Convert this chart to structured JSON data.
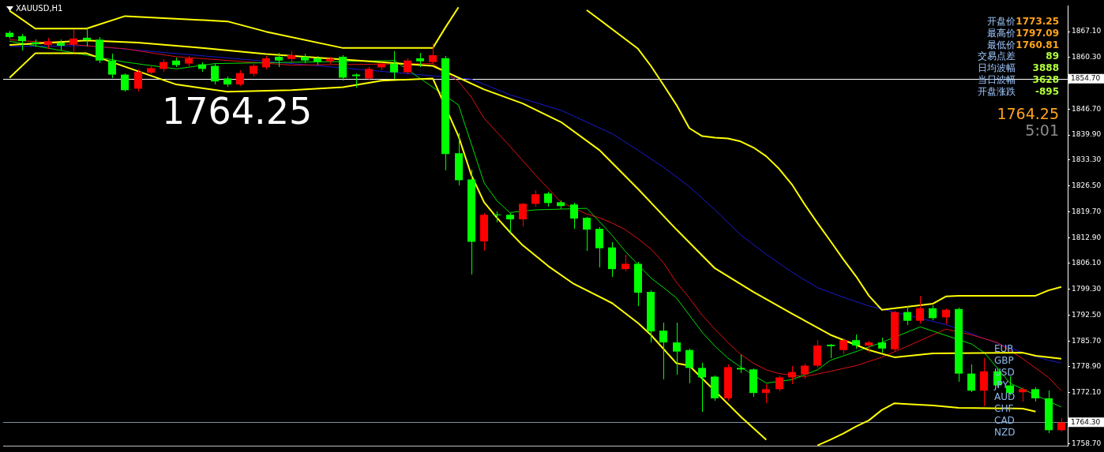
{
  "chart_data": {
    "type": "candlestick",
    "title": "XAUUSD,H1",
    "categories": [
      null,
      null,
      null,
      null,
      null,
      null,
      null,
      null,
      null,
      null,
      null,
      null,
      null,
      null,
      null,
      null,
      null,
      null,
      null,
      null,
      null,
      null,
      null,
      null,
      null,
      null,
      null,
      null,
      null,
      null,
      null,
      null,
      null,
      null,
      null,
      null,
      null,
      null,
      null,
      null,
      null,
      null,
      null,
      null,
      null,
      null,
      null,
      null,
      null,
      null,
      null,
      null,
      null,
      null,
      null,
      null,
      null,
      null,
      null,
      null,
      null,
      null,
      null,
      null,
      null,
      null,
      null,
      null,
      null,
      null,
      null,
      null,
      null,
      null,
      null,
      null,
      null,
      null,
      null,
      null,
      null,
      null,
      null
    ],
    "ohlc": [
      [
        1866.8,
        1867.2,
        1865.5,
        1865.7
      ],
      [
        1865.9,
        1866.5,
        1862.4,
        1864.6
      ],
      [
        1864.3,
        1865.0,
        1863.4,
        1863.8
      ],
      [
        1863.6,
        1865.3,
        1862.8,
        1864.6
      ],
      [
        1864.2,
        1865.0,
        1862.5,
        1863.4
      ],
      [
        1863.8,
        1867.5,
        1861.8,
        1865.3
      ],
      [
        1865.5,
        1867.9,
        1863.4,
        1864.9
      ],
      [
        1865.0,
        1865.5,
        1859.0,
        1859.5
      ],
      [
        1859.5,
        1861.3,
        1855.2,
        1855.8
      ],
      [
        1855.8,
        1856.0,
        1851.5,
        1851.7
      ],
      [
        1852.1,
        1857.0,
        1851.5,
        1856.5
      ],
      [
        1856.3,
        1858.0,
        1856.0,
        1857.5
      ],
      [
        1857.3,
        1859.8,
        1856.8,
        1859.1
      ],
      [
        1859.5,
        1860.2,
        1858.0,
        1858.3
      ],
      [
        1858.7,
        1860.5,
        1858.2,
        1860.1
      ],
      [
        1858.5,
        1859.0,
        1856.8,
        1857.3
      ],
      [
        1858.1,
        1858.5,
        1853.5,
        1854.0
      ],
      [
        1854.8,
        1855.2,
        1852.8,
        1853.2
      ],
      [
        1853.2,
        1856.8,
        1852.9,
        1856.2
      ],
      [
        1856.0,
        1858.6,
        1855.6,
        1858.1
      ],
      [
        1857.7,
        1860.6,
        1857.4,
        1860.1
      ],
      [
        1860.5,
        1861.5,
        1858.0,
        1859.5
      ],
      [
        1859.9,
        1861.9,
        1859.0,
        1860.9
      ],
      [
        1860.5,
        1861.2,
        1859.0,
        1859.5
      ],
      [
        1860.1,
        1860.6,
        1858.6,
        1859.1
      ],
      [
        1859.3,
        1860.4,
        1858.8,
        1860.0
      ],
      [
        1860.5,
        1860.9,
        1854.6,
        1855.0
      ],
      [
        1855.8,
        1856.0,
        1852.5,
        1855.4
      ],
      [
        1854.8,
        1857.6,
        1854.4,
        1857.3
      ],
      [
        1857.7,
        1859.0,
        1857.3,
        1858.7
      ],
      [
        1858.7,
        1861.8,
        1854.8,
        1856.4
      ],
      [
        1856.4,
        1859.9,
        1856.0,
        1859.5
      ],
      [
        1860.1,
        1861.5,
        1858.0,
        1859.3
      ],
      [
        1859.1,
        1864.0,
        1859.0,
        1860.9
      ],
      [
        1860.1,
        1860.5,
        1830.8,
        1834.9
      ],
      [
        1835.1,
        1840.3,
        1826.9,
        1828.0
      ],
      [
        1828.2,
        1830.6,
        1803.4,
        1811.8
      ],
      [
        1811.9,
        1819.2,
        1809.5,
        1818.9
      ],
      [
        1819.0,
        1819.7,
        1817.1,
        1818.8
      ],
      [
        1818.9,
        1819.2,
        1814.4,
        1817.7
      ],
      [
        1817.7,
        1822.0,
        1816.1,
        1821.8
      ],
      [
        1821.8,
        1825.3,
        1821.2,
        1824.3
      ],
      [
        1824.5,
        1824.8,
        1821.2,
        1822.0
      ],
      [
        1822.2,
        1822.6,
        1820.6,
        1821.2
      ],
      [
        1821.6,
        1822.0,
        1815.5,
        1817.9
      ],
      [
        1818.1,
        1818.3,
        1809.7,
        1815.0
      ],
      [
        1815.2,
        1815.5,
        1805.2,
        1810.1
      ],
      [
        1810.3,
        1811.5,
        1802.7,
        1804.6
      ],
      [
        1804.6,
        1808.3,
        1804.2,
        1806.0
      ],
      [
        1806.0,
        1806.5,
        1795.1,
        1798.4
      ],
      [
        1798.6,
        1799.0,
        1785.7,
        1788.2
      ],
      [
        1788.4,
        1790.5,
        1775.9,
        1785.3
      ],
      [
        1785.3,
        1790.5,
        1777.1,
        1782.9
      ],
      [
        1783.3,
        1783.5,
        1774.7,
        1778.6
      ],
      [
        1778.6,
        1779.8,
        1767.3,
        1776.1
      ],
      [
        1776.3,
        1776.5,
        1770.2,
        1770.6
      ],
      [
        1770.6,
        1779.4,
        1770.2,
        1778.8
      ],
      [
        1778.6,
        1782.0,
        1777.5,
        1778.2
      ],
      [
        1778.2,
        1778.4,
        1771.2,
        1772.0
      ],
      [
        1772.0,
        1774.2,
        1769.5,
        1773.0
      ],
      [
        1773.0,
        1776.5,
        1772.6,
        1776.1
      ],
      [
        1776.1,
        1779.0,
        1774.5,
        1777.5
      ],
      [
        1776.9,
        1779.6,
        1776.0,
        1779.2
      ],
      [
        1779.2,
        1785.9,
        1779.0,
        1784.5
      ],
      [
        1784.7,
        1784.9,
        1781.4,
        1784.3
      ],
      [
        1783.3,
        1786.3,
        1782.5,
        1785.9
      ],
      [
        1785.9,
        1787.2,
        1783.7,
        1784.5
      ],
      [
        1784.5,
        1785.7,
        1782.9,
        1785.3
      ],
      [
        1785.3,
        1786.5,
        1782.9,
        1783.7
      ],
      [
        1783.5,
        1793.5,
        1783.3,
        1793.3
      ],
      [
        1793.3,
        1794.7,
        1790.0,
        1791.0
      ],
      [
        1791.0,
        1797.4,
        1790.4,
        1794.3
      ],
      [
        1794.3,
        1795.0,
        1791.4,
        1791.7
      ],
      [
        1791.9,
        1794.2,
        1790.4,
        1793.9
      ],
      [
        1794.1,
        1794.3,
        1775.1,
        1777.1
      ],
      [
        1777.1,
        1779.4,
        1772.4,
        1772.6
      ],
      [
        1772.6,
        1781.0,
        1768.7,
        1777.7
      ],
      [
        1777.7,
        1778.5,
        1773.7,
        1774.0
      ],
      [
        1774.0,
        1776.3,
        1771.6,
        1772.0
      ],
      [
        1772.2,
        1773.4,
        1770.0,
        1773.0
      ],
      [
        1773.0,
        1773.4,
        1770.0,
        1770.6
      ],
      [
        1770.6,
        1772.6,
        1761.7,
        1762.2
      ],
      [
        1762.2,
        1765.2,
        1761.9,
        1764.25
      ]
    ],
    "colors": [
      "#00ff00",
      "#00ff00",
      "#00ff00",
      "#ff0000",
      "#00ff00",
      "#ff0000",
      "#00ff00",
      "#00ff00",
      "#00ff00",
      "#00ff00",
      "#ff0000",
      "#ff0000",
      "#ff0000",
      "#00ff00",
      "#ff0000",
      "#00ff00",
      "#00ff00",
      "#00ff00",
      "#ff0000",
      "#ff0000",
      "#ff0000",
      "#00ff00",
      "#ff0000",
      "#00ff00",
      "#00ff00",
      "#ff0000",
      "#00ff00",
      "#00ff00",
      "#ff0000",
      "#ff0000",
      "#00ff00",
      "#ff0000",
      "#00ff00",
      "#ff0000",
      "#00ff00",
      "#00ff00",
      "#00ff00",
      "#ff0000",
      "#00ff00",
      "#00ff00",
      "#ff0000",
      "#ff0000",
      "#00ff00",
      "#00ff00",
      "#00ff00",
      "#00ff00",
      "#00ff00",
      "#00ff00",
      "#ff0000",
      "#00ff00",
      "#00ff00",
      "#00ff00",
      "#00ff00",
      "#00ff00",
      "#00ff00",
      "#00ff00",
      "#ff0000",
      "#00ff00",
      "#00ff00",
      "#ff0000",
      "#ff0000",
      "#ff0000",
      "#ff0000",
      "#ff0000",
      "#00ff00",
      "#ff0000",
      "#00ff00",
      "#ff0000",
      "#00ff00",
      "#ff0000",
      "#00ff00",
      "#ff0000",
      "#00ff00",
      "#ff0000",
      "#00ff00",
      "#00ff00",
      "#ff0000",
      "#00ff00",
      "#00ff00",
      "#ff0000",
      "#00ff00",
      "#00ff00",
      "#ff0000"
    ],
    "series": [
      {
        "type": "line",
        "color": "#ffff00",
        "values": [
          1872.6,
          null,
          1867.9,
          null,
          null,
          null,
          1867.9,
          null,
          null,
          1871.2,
          null,
          null,
          null,
          null,
          null,
          null,
          null,
          1869.8,
          null,
          null,
          1867.1,
          null,
          null,
          null,
          null,
          null,
          1862.8,
          null,
          null,
          null,
          null,
          null,
          null,
          1862.8,
          1868.3,
          1873.5,
          null,
          null,
          null,
          null,
          null,
          null,
          null,
          null,
          null,
          null,
          null,
          null,
          null,
          null,
          null,
          null,
          null,
          null,
          null,
          null,
          null,
          null,
          null,
          null,
          null,
          null,
          null,
          null,
          null,
          null,
          null,
          null,
          null,
          null,
          null,
          null,
          null,
          null,
          null,
          null,
          null,
          null,
          null,
          null,
          null,
          null,
          null
        ]
      },
      {
        "type": "line",
        "color": "#ffff00",
        "values": [
          null,
          null,
          null,
          null,
          null,
          null,
          null,
          null,
          null,
          null,
          null,
          null,
          null,
          null,
          null,
          null,
          null,
          null,
          null,
          null,
          null,
          null,
          null,
          null,
          null,
          null,
          null,
          null,
          null,
          null,
          null,
          null,
          null,
          null,
          null,
          null,
          null,
          null,
          null,
          null,
          null,
          null,
          null,
          null,
          null,
          1872.8,
          null,
          null,
          null,
          1862.6,
          1858.1,
          1853.0,
          1847.8,
          1841.7,
          1839.6,
          1839.2,
          1839.0,
          1838.2,
          1836.6,
          1834.3,
          1831.0,
          1826.9,
          1821.6,
          1816.7,
          1812.0,
          1807.2,
          1802.7,
          1797.6,
          1793.9,
          null,
          null,
          null,
          1795.5,
          1797.4,
          1797.6,
          null,
          null,
          null,
          null,
          null,
          1797.6,
          1799.0,
          1799.9
        ]
      },
      {
        "type": "line",
        "color": "#ffff00",
        "values": [
          1863.6,
          null,
          null,
          null,
          null,
          null,
          1864.8,
          null,
          null,
          null,
          1864.2,
          null,
          null,
          null,
          null,
          1862.8,
          null,
          null,
          null,
          null,
          1861.2,
          null,
          null,
          null,
          null,
          null,
          null,
          null,
          null,
          null,
          null,
          null,
          null,
          1858.1,
          null,
          null,
          null,
          1851.9,
          null,
          null,
          1848.2,
          null,
          null,
          1843.3,
          null,
          null,
          1835.9,
          null,
          null,
          1825.7,
          null,
          null,
          1815.0,
          null,
          null,
          1804.8,
          null,
          null,
          1798.6,
          null,
          null,
          1792.9,
          null,
          null,
          1787.3,
          null,
          null,
          1783.3,
          null,
          1781.4,
          null,
          null,
          1782.4,
          null,
          null,
          null,
          null,
          null,
          null,
          1782.6,
          1781.8,
          null,
          1781.0
        ]
      },
      {
        "type": "line",
        "color": "#ffff00",
        "values": [
          1855.0,
          null,
          1861.4,
          null,
          null,
          null,
          1861.4,
          null,
          null,
          null,
          null,
          null,
          null,
          1853.2,
          null,
          null,
          null,
          1851.3,
          null,
          null,
          null,
          null,
          1851.7,
          null,
          null,
          null,
          1852.5,
          null,
          null,
          1854.2,
          null,
          null,
          null,
          1854.8,
          null,
          1839.6,
          1829.4,
          1822.2,
          1818.1,
          1814.4,
          1810.9,
          null,
          1805.4,
          null,
          1800.7,
          null,
          null,
          1795.6,
          null,
          1790.4,
          1787.3,
          null,
          1779.8,
          1779.2,
          null,
          null,
          null,
          1765.8,
          null,
          1759.7,
          null,
          null,
          null,
          null,
          null,
          null,
          null,
          null,
          null,
          null,
          null,
          null,
          null,
          null,
          null,
          null,
          null,
          null,
          null,
          null,
          null,
          null,
          null
        ]
      },
      {
        "type": "line",
        "color": "#ffff00",
        "values": [
          null,
          null,
          null,
          null,
          null,
          null,
          null,
          null,
          null,
          null,
          null,
          null,
          null,
          null,
          null,
          null,
          null,
          null,
          null,
          null,
          null,
          null,
          null,
          null,
          null,
          null,
          null,
          null,
          null,
          null,
          null,
          null,
          null,
          null,
          null,
          null,
          null,
          null,
          null,
          null,
          null,
          null,
          null,
          null,
          null,
          null,
          null,
          null,
          null,
          null,
          null,
          null,
          null,
          null,
          null,
          null,
          null,
          null,
          null,
          null,
          null,
          null,
          null,
          1758.2,
          1759.7,
          1761.3,
          1763.2,
          1764.8,
          1767.5,
          1769.3,
          1769.1,
          null,
          1768.7,
          null,
          1768.1,
          null,
          null,
          null,
          null,
          1767.9,
          1767.1,
          null,
          null
        ]
      },
      {
        "type": "line",
        "color": "#00e000",
        "values": [
          1864.6,
          null,
          null,
          null,
          null,
          null,
          null,
          null,
          null,
          1859.1,
          null,
          null,
          null,
          1857.3,
          null,
          null,
          1858.7,
          null,
          null,
          null,
          null,
          null,
          null,
          null,
          null,
          null,
          null,
          null,
          null,
          null,
          1859.5,
          null,
          null,
          null,
          null,
          1847.8,
          1837.6,
          1827.3,
          1822.6,
          1819.5,
          null,
          1820.2,
          null,
          null,
          null,
          1820.6,
          1817.1,
          1813.4,
          1809.3,
          null,
          1802.3,
          1799.7,
          1797.0,
          1792.5,
          1788.0,
          1784.3,
          1781.2,
          1778.8,
          null,
          1774.6,
          null,
          1775.5,
          null,
          1778.1,
          1780.6,
          null,
          1782.9,
          null,
          1785.3,
          null,
          null,
          1789.4,
          null,
          null,
          null,
          1784.9,
          1782.6,
          null,
          1774.6,
          null,
          null,
          null,
          1768.3
        ]
      },
      {
        "type": "line",
        "color": "#e01010",
        "values": [
          1865.0,
          null,
          null,
          null,
          null,
          null,
          null,
          null,
          null,
          1862.6,
          null,
          null,
          null,
          1860.5,
          null,
          null,
          null,
          null,
          null,
          null,
          null,
          null,
          1858.3,
          null,
          null,
          null,
          null,
          null,
          null,
          null,
          null,
          null,
          null,
          1858.7,
          null,
          1854.0,
          1849.9,
          1844.3,
          null,
          1837.0,
          null,
          1829.4,
          null,
          1822.2,
          null,
          1819.1,
          1818.1,
          1816.7,
          1815.0,
          1812.6,
          1809.9,
          1806.2,
          1801.1,
          1797.0,
          1792.5,
          1788.8,
          1785.3,
          1782.2,
          1779.8,
          1778.1,
          1777.1,
          null,
          1776.3,
          null,
          1777.7,
          null,
          1779.2,
          null,
          1781.4,
          null,
          1784.3,
          null,
          1787.3,
          1788.8,
          null,
          1787.3,
          null,
          1785.3,
          null,
          1781.0,
          null,
          1776.1,
          1772.6
        ]
      },
      {
        "type": "line",
        "color": "#1a1ad0",
        "values": [
          1863.2,
          null,
          null,
          null,
          null,
          null,
          1863.4,
          null,
          null,
          null,
          null,
          null,
          null,
          null,
          null,
          null,
          null,
          null,
          null,
          null,
          null,
          null,
          null,
          null,
          null,
          null,
          null,
          null,
          null,
          null,
          null,
          null,
          null,
          null,
          null,
          null,
          1854.6,
          null,
          null,
          1850.5,
          null,
          null,
          null,
          1846.4,
          null,
          null,
          null,
          1840.2,
          null,
          1835.9,
          null,
          1831.4,
          null,
          1826.3,
          null,
          1820.2,
          null,
          1813.6,
          null,
          1808.5,
          null,
          1803.8,
          null,
          1799.7,
          null,
          1797.2,
          null,
          1794.9,
          null,
          null,
          null,
          null,
          null,
          1790.0,
          null,
          null,
          null,
          1785.1,
          null,
          1782.6,
          null,
          1780.6,
          1779.9
        ]
      }
    ],
    "ylim": [
      1758.0,
      1873.9
    ],
    "yticks": [
      {
        "value": 1867.1,
        "label": "1867.10"
      },
      {
        "value": 1860.3,
        "label": "1860.30"
      },
      {
        "value": 1853.5,
        "label": null
      },
      {
        "value": 1846.7,
        "label": "1846.70"
      },
      {
        "value": 1839.9,
        "label": "1839.90"
      },
      {
        "value": 1833.3,
        "label": "1833.30"
      },
      {
        "value": 1826.5,
        "label": "1826.50"
      },
      {
        "value": 1819.7,
        "label": "1819.70"
      },
      {
        "value": 1812.9,
        "label": "1812.90"
      },
      {
        "value": 1806.1,
        "label": "1806.10"
      },
      {
        "value": 1799.3,
        "label": "1799.30"
      },
      {
        "value": 1792.5,
        "label": "1792.50"
      },
      {
        "value": 1785.7,
        "label": "1785.70"
      },
      {
        "value": 1778.9,
        "label": "1778.90"
      },
      {
        "value": 1772.1,
        "label": "1772.10"
      },
      {
        "value": 1765.3,
        "label": null
      },
      {
        "value": 1758.7,
        "label": "1758.70"
      }
    ],
    "ref_lines": [
      {
        "axis": "y",
        "value": 1854.7,
        "label": "1854.70",
        "color": "#ffffff",
        "line_style": "solid"
      },
      {
        "axis": "y",
        "value": 1764.3,
        "label": "1764.30",
        "color": "#8090a0",
        "line_style": "solid"
      }
    ],
    "annotations": [
      "1764.25",
      "开盘价",
      "1773.25",
      "最高价",
      "1797.09",
      "最低价",
      "1760.81",
      "交易点差",
      "89",
      "日均波幅",
      "3888",
      "当日波幅",
      "3628",
      "开盘涨跌",
      "-895",
      "1764.25",
      "5:01",
      "EUR",
      "GBP",
      "USD",
      "JPY",
      "AUD",
      "CHF",
      "CAD",
      "NZD"
    ],
    "grid": false,
    "legend": false,
    "marker": "none",
    "line_style": "solid",
    "tick_labels": "y"
  }
}
